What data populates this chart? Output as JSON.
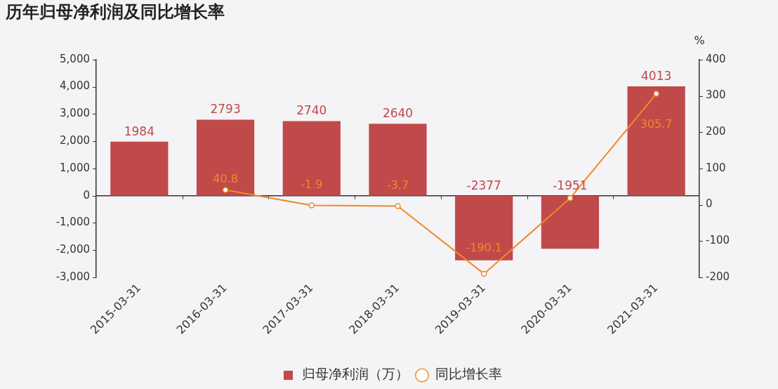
{
  "chart_data": {
    "type": "bar",
    "title": "历年归母净利润及同比增长率",
    "y2label": "%",
    "categories": [
      "2015-03-31",
      "2016-03-31",
      "2017-03-31",
      "2018-03-31",
      "2019-03-31",
      "2020-03-31",
      "2021-03-31"
    ],
    "series": [
      {
        "name": "归母净利润（万）",
        "color": "#c0494a",
        "values": [
          1984,
          2793,
          2740,
          2640,
          -2377,
          -1951,
          4013
        ],
        "value_labels": [
          "1984",
          "2793",
          "2740",
          "2640",
          "-2377",
          "-1951",
          "4013"
        ]
      },
      {
        "name": "同比增长率",
        "type": "line",
        "axis": "y2",
        "color": "#f08a28",
        "marker": "circle",
        "line_style": "solid",
        "values": [
          null,
          40.8,
          -1.9,
          -3.7,
          -190.1,
          18,
          305.7
        ],
        "value_labels": [
          null,
          "40.8",
          "-1.9",
          "-3.7",
          "-190.1",
          null,
          "305.7"
        ]
      }
    ],
    "ylim": [
      -3000,
      5000
    ],
    "yticks": [
      {
        "value": -3000,
        "label": "-3,000"
      },
      {
        "value": -2000,
        "label": "-2,000"
      },
      {
        "value": -1000,
        "label": "-1,000"
      },
      0,
      {
        "value": 1000,
        "label": "1,000"
      },
      {
        "value": 2000,
        "label": "2,000"
      },
      {
        "value": 3000,
        "label": "3,000"
      },
      {
        "value": 4000,
        "label": "4,000"
      },
      {
        "value": 5000,
        "label": "5,000"
      }
    ],
    "y2lim": [
      -200,
      400
    ],
    "y2ticks": [
      -200,
      -100,
      0,
      100,
      200,
      300,
      400
    ],
    "ref_lines": [
      {
        "axis": "y",
        "value": 0,
        "color": "#333333"
      }
    ],
    "grid": false,
    "legend": "bottom"
  }
}
